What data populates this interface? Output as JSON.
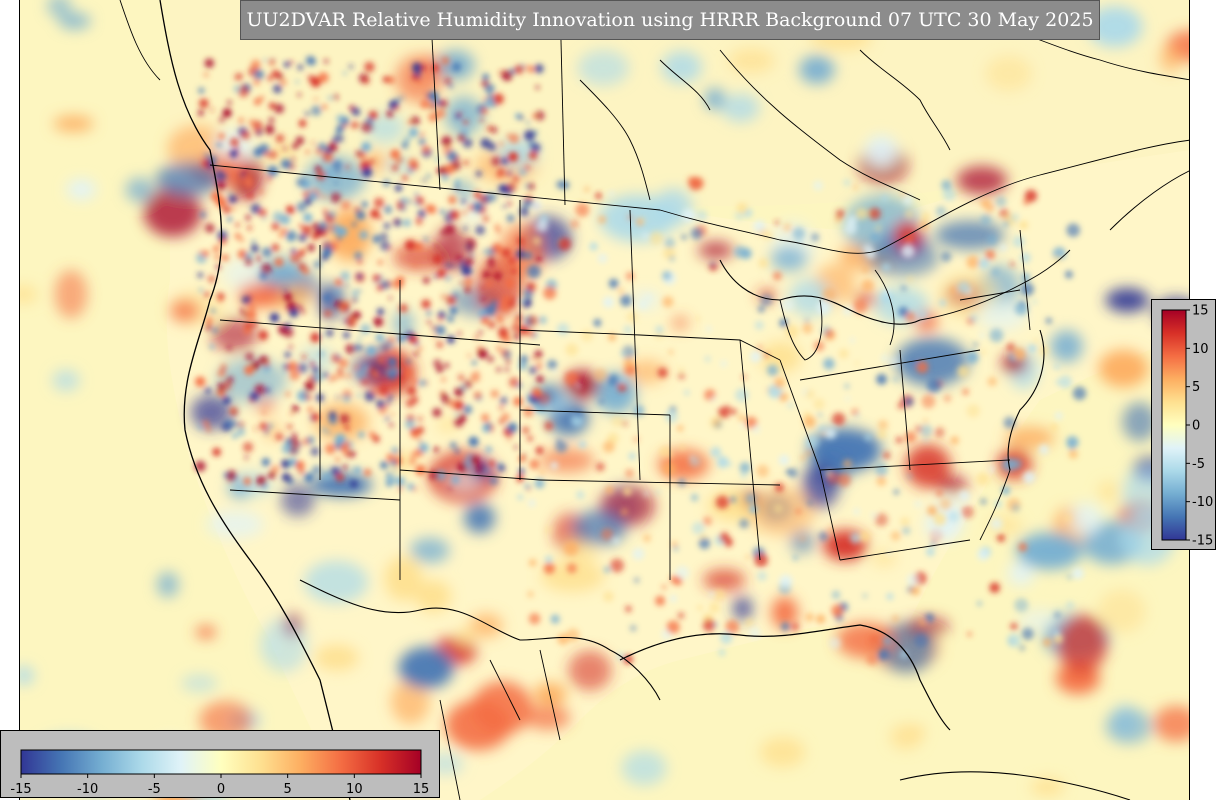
{
  "title": "UU2DVAR Relative Humidity Innovation using HRRR Background 07 UTC 30 May 2025",
  "colorbar": {
    "ticks": [
      "-15",
      "-10",
      "-5",
      "0",
      "5",
      "10",
      "15"
    ],
    "tick_values": [
      -15,
      -10,
      -5,
      0,
      5,
      10,
      15
    ],
    "range": [
      -15,
      15
    ],
    "colormap": [
      "#313695",
      "#4575b4",
      "#74add1",
      "#abd9e9",
      "#e0f3f8",
      "#ffffbf",
      "#fee090",
      "#fdae61",
      "#f46d43",
      "#d73027",
      "#a50026"
    ]
  },
  "map": {
    "ocean_color": "#fdf6c0",
    "border_color": "#000000"
  }
}
